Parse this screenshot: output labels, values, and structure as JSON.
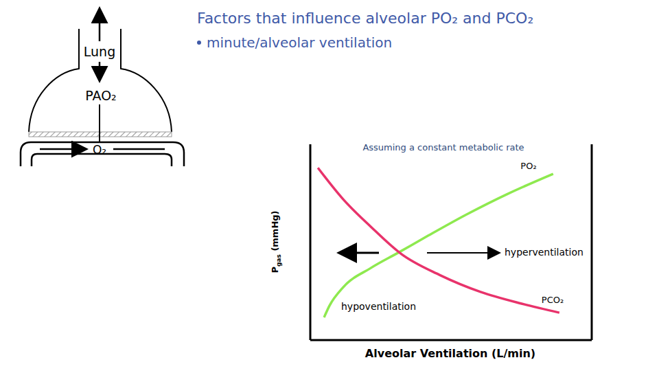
{
  "title": "Factors that influence alveolar PO₂ and PCO₂",
  "bullets": [
    "minute/alveolar ventilation"
  ],
  "diagram": {
    "labels": {
      "lung": "Lung",
      "alveolar": "PAO₂",
      "capillary": "O₂"
    }
  },
  "chart_data": {
    "type": "line",
    "subtitle": "Assuming a constant metabolic rate",
    "x_label": "Alveolar Ventilation (L/min)",
    "y_label": "Pgas (mmHg)",
    "y_label_subscript": "gas",
    "xlim": [
      0,
      100
    ],
    "ylim": [
      0,
      100
    ],
    "tick_labels": false,
    "grid": false,
    "annotations": [
      "hypoventilation",
      "hyperventilation"
    ],
    "series": [
      {
        "name": "PO₂",
        "color": "#8ee94f",
        "x": [
          4.9,
          6.8,
          11.7,
          21.5,
          31.2,
          41,
          55.6,
          70.2,
          86.3
        ],
        "values": [
          11.6,
          17.5,
          27,
          36.8,
          44.6,
          52.6,
          64.2,
          74.7,
          84.9
        ]
      },
      {
        "name": "PCO₂",
        "color": "#e8336b",
        "x": [
          2.7,
          11.7,
          21.5,
          32.4,
          45.9,
          60.5,
          75.1,
          88.5
        ],
        "values": [
          88,
          71.9,
          57.9,
          43.9,
          33.3,
          24.6,
          18.6,
          14
        ]
      }
    ]
  }
}
